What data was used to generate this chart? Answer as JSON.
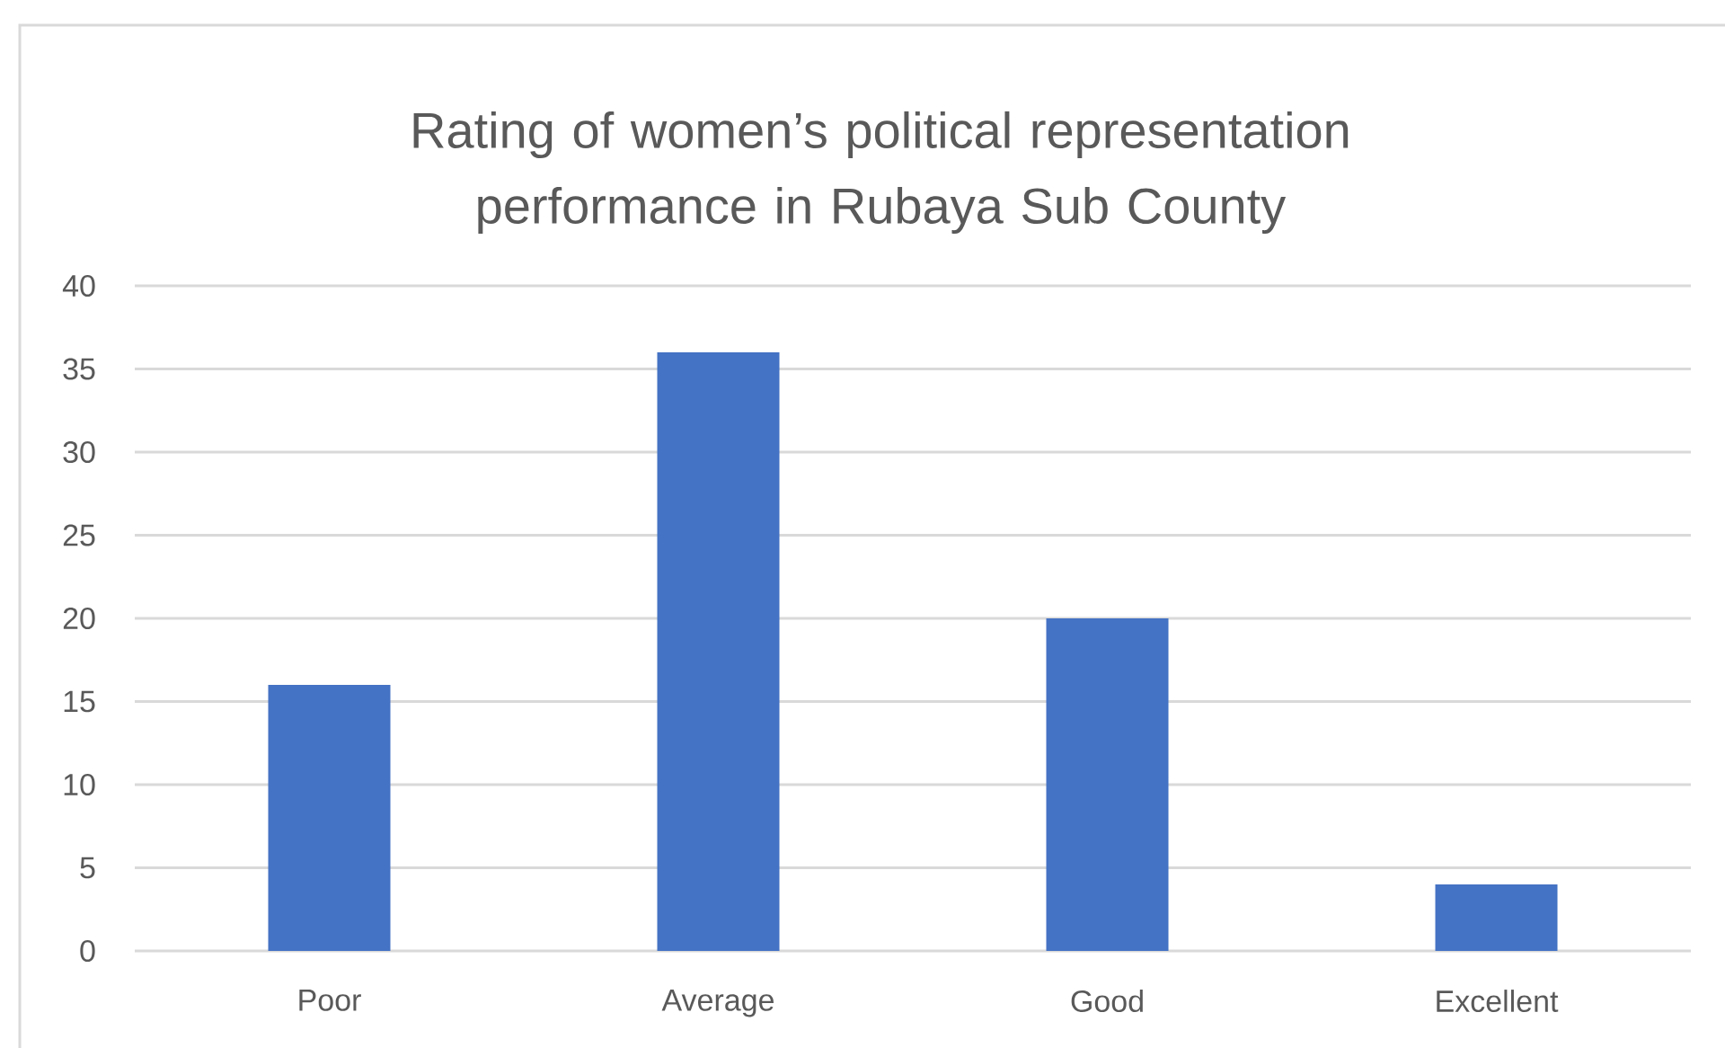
{
  "chart_data": {
    "type": "bar",
    "title": "Rating of women’s political representation performance in Rubaya Sub County",
    "categories": [
      "Poor",
      "Average",
      "Good",
      "Excellent"
    ],
    "values": [
      16,
      36,
      20,
      4
    ],
    "color": "#4472c4",
    "ylim": [
      0,
      40
    ],
    "yticks": [
      0,
      5,
      10,
      15,
      20,
      25,
      30,
      35,
      40
    ],
    "grid": "y"
  }
}
